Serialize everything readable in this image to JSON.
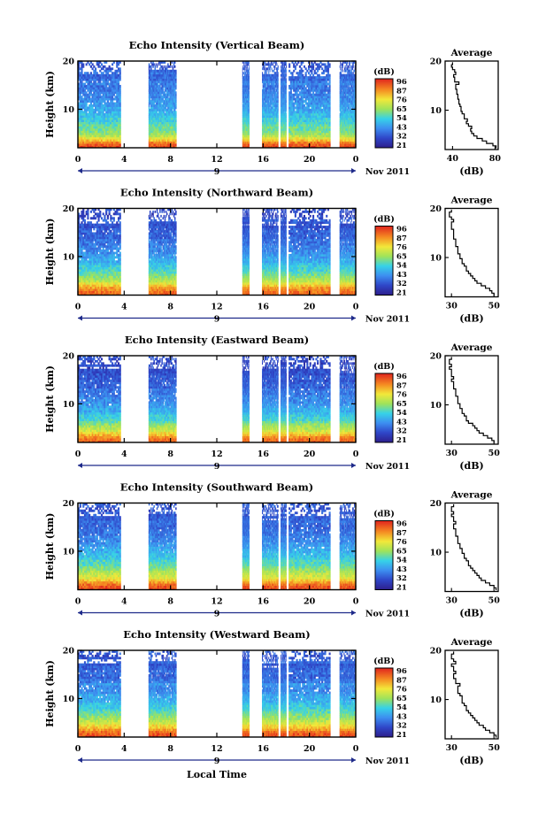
{
  "figure": {
    "xlabel": "Local Time",
    "date_label": "Nov 2011",
    "day_label": "9",
    "ylabel": "Height (km)",
    "colorbar_label": "(dB)",
    "colorbar_ticks": [
      "96",
      "87",
      "76",
      "65",
      "54",
      "43",
      "32",
      "21"
    ],
    "colorbar_ticks_east": [
      "96",
      "87",
      "76",
      "65",
      "54",
      "43",
      "32",
      "21"
    ]
  },
  "chart_data": [
    {
      "type": "heatmap",
      "title": "Echo Intensity (Vertical Beam)",
      "xlabel": "Local Time",
      "ylabel": "Height (km)",
      "x_ticks": [
        "0",
        "4",
        "8",
        "12",
        "16",
        "20",
        "0"
      ],
      "y_ticks": [
        "10",
        "20"
      ],
      "xlim": [
        0,
        24
      ],
      "ylim": [
        2,
        20
      ],
      "colorbar": {
        "label": "(dB)",
        "range": [
          21,
          96
        ]
      },
      "data_segments": [
        [
          0,
          3.7
        ],
        [
          6.1,
          8.5
        ],
        [
          14.2,
          14.8
        ],
        [
          15.9,
          17.3
        ],
        [
          17.5,
          18.0
        ],
        [
          18.2,
          21.8
        ],
        [
          22.6,
          24
        ]
      ],
      "profile": {
        "title": "Average",
        "xlabel": "(dB)",
        "x_ticks": [
          "40",
          "80"
        ],
        "y_ticks": [
          "10",
          "20"
        ],
        "xlim": [
          33,
          83
        ],
        "ylim": [
          2,
          20
        ],
        "heights": [
          2.5,
          3,
          3.5,
          4,
          4.5,
          5,
          5.5,
          6,
          6.5,
          7,
          7.5,
          8,
          8.5,
          9,
          9.5,
          10,
          10.5,
          11,
          11.5,
          12,
          12.5,
          13,
          13.5,
          14,
          14.5,
          15,
          15.5,
          16,
          16.5,
          17,
          17.5,
          18,
          18.5,
          19,
          19.5
        ],
        "values": [
          81,
          78,
          72,
          68,
          63,
          60,
          58,
          57,
          58,
          55,
          53,
          54,
          51,
          51,
          49,
          48,
          48,
          47,
          46,
          46,
          45,
          45,
          44,
          44,
          43,
          43,
          46,
          42,
          42,
          41,
          43,
          42,
          40,
          39,
          40
        ]
      }
    },
    {
      "type": "heatmap",
      "title": "Echo Intensity (Northward Beam)",
      "xlabel": "Local Time",
      "ylabel": "Height (km)",
      "x_ticks": [
        "0",
        "4",
        "8",
        "12",
        "16",
        "20",
        "0"
      ],
      "y_ticks": [
        "10",
        "20"
      ],
      "xlim": [
        0,
        24
      ],
      "ylim": [
        2,
        20
      ],
      "colorbar": {
        "label": "(dB)",
        "range": [
          21,
          96
        ]
      },
      "data_segments": [
        [
          0,
          3.7
        ],
        [
          6.1,
          8.5
        ],
        [
          14.2,
          14.8
        ],
        [
          15.9,
          17.3
        ],
        [
          17.5,
          18.0
        ],
        [
          18.2,
          21.8
        ],
        [
          22.6,
          24
        ]
      ],
      "profile": {
        "title": "Average",
        "xlabel": "(dB)",
        "x_ticks": [
          "30",
          "50"
        ],
        "y_ticks": [
          "10",
          "20"
        ],
        "xlim": [
          27,
          52
        ],
        "ylim": [
          2,
          20
        ],
        "heights": [
          2.5,
          3,
          3.5,
          4,
          4.5,
          5,
          5.5,
          6,
          6.5,
          7,
          7.5,
          8,
          8.5,
          9,
          9.5,
          10,
          10.5,
          11,
          11.5,
          12,
          12.5,
          13,
          13.5,
          14,
          14.5,
          15,
          15.5,
          16,
          16.5,
          17,
          17.5,
          18,
          18.5,
          19,
          19.5
        ],
        "values": [
          50,
          49,
          48,
          46,
          44,
          42,
          41,
          40,
          39,
          38,
          37,
          37,
          36,
          35,
          35,
          34,
          34,
          33,
          33,
          33,
          32,
          32,
          32,
          31,
          31,
          31,
          31,
          30,
          30,
          30,
          31,
          30,
          29,
          29,
          30
        ]
      }
    },
    {
      "type": "heatmap",
      "title": "Echo Intensity (Eastward Beam)",
      "xlabel": "Local Time",
      "ylabel": "Height (km)",
      "x_ticks": [
        "0",
        "4",
        "8",
        "12",
        "16",
        "20",
        "0"
      ],
      "y_ticks": [
        "10",
        "20"
      ],
      "xlim": [
        0,
        24
      ],
      "ylim": [
        2,
        20
      ],
      "colorbar": {
        "label": "(dB)",
        "range": [
          21,
          96
        ]
      },
      "data_segments": [
        [
          0,
          3.7
        ],
        [
          6.1,
          8.5
        ],
        [
          14.2,
          14.8
        ],
        [
          15.9,
          17.3
        ],
        [
          17.5,
          18.0
        ],
        [
          18.2,
          21.8
        ],
        [
          22.6,
          24
        ]
      ],
      "profile": {
        "title": "Average",
        "xlabel": "(dB)",
        "x_ticks": [
          "30",
          "50"
        ],
        "y_ticks": [
          "10",
          "20"
        ],
        "xlim": [
          27,
          52
        ],
        "ylim": [
          2,
          20
        ],
        "heights": [
          2.5,
          3,
          3.5,
          4,
          4.5,
          5,
          5.5,
          6,
          6.5,
          7,
          7.5,
          8,
          8.5,
          9,
          9.5,
          10,
          10.5,
          11,
          11.5,
          12,
          12.5,
          13,
          13.5,
          14,
          14.5,
          15,
          15.5,
          16,
          16.5,
          17,
          17.5,
          18,
          18.5,
          19,
          19.5
        ],
        "values": [
          50,
          49,
          47,
          45,
          43,
          42,
          41,
          40,
          38,
          37,
          37,
          36,
          35,
          35,
          34,
          34,
          33,
          33,
          33,
          32,
          32,
          32,
          31,
          31,
          31,
          30,
          31,
          30,
          30,
          30,
          29,
          30,
          29,
          29,
          30
        ]
      }
    },
    {
      "type": "heatmap",
      "title": "Echo Intensity (Southward Beam)",
      "xlabel": "Local Time",
      "ylabel": "Height (km)",
      "x_ticks": [
        "0",
        "4",
        "8",
        "12",
        "16",
        "20",
        "0"
      ],
      "y_ticks": [
        "10",
        "20"
      ],
      "xlim": [
        0,
        24
      ],
      "ylim": [
        2,
        20
      ],
      "colorbar": {
        "label": "(dB)",
        "range": [
          21,
          96
        ]
      },
      "data_segments": [
        [
          0,
          3.7
        ],
        [
          6.1,
          8.5
        ],
        [
          14.2,
          14.8
        ],
        [
          15.9,
          17.3
        ],
        [
          17.5,
          18.0
        ],
        [
          18.2,
          21.8
        ],
        [
          22.6,
          24
        ]
      ],
      "profile": {
        "title": "Average",
        "xlabel": "(dB)",
        "x_ticks": [
          "30",
          "50"
        ],
        "y_ticks": [
          "10",
          "20"
        ],
        "xlim": [
          27,
          52
        ],
        "ylim": [
          2,
          20
        ],
        "heights": [
          2.5,
          3,
          3.5,
          4,
          4.5,
          5,
          5.5,
          6,
          6.5,
          7,
          7.5,
          8,
          8.5,
          9,
          9.5,
          10,
          10.5,
          11,
          11.5,
          12,
          12.5,
          13,
          13.5,
          14,
          14.5,
          15,
          15.5,
          16,
          16.5,
          17,
          17.5,
          18,
          18.5,
          19,
          19.5
        ],
        "values": [
          51,
          50,
          48,
          46,
          44,
          43,
          42,
          41,
          40,
          39,
          38,
          38,
          37,
          36,
          36,
          35,
          35,
          34,
          34,
          33,
          33,
          33,
          32,
          32,
          32,
          31,
          31,
          32,
          31,
          31,
          30,
          31,
          30,
          30,
          31
        ]
      }
    },
    {
      "type": "heatmap",
      "title": "Echo Intensity (Westward Beam)",
      "xlabel": "Local Time",
      "ylabel": "Height (km)",
      "x_ticks": [
        "0",
        "4",
        "8",
        "12",
        "16",
        "20",
        "0"
      ],
      "y_ticks": [
        "10",
        "20"
      ],
      "xlim": [
        0,
        24
      ],
      "ylim": [
        2,
        20
      ],
      "colorbar": {
        "label": "(dB)",
        "range": [
          21,
          96
        ]
      },
      "data_segments": [
        [
          0,
          3.7
        ],
        [
          6.1,
          8.5
        ],
        [
          14.2,
          14.8
        ],
        [
          15.9,
          17.3
        ],
        [
          17.5,
          18.0
        ],
        [
          18.2,
          21.8
        ],
        [
          22.6,
          24
        ]
      ],
      "profile": {
        "title": "Average",
        "xlabel": "(dB)",
        "x_ticks": [
          "30",
          "50"
        ],
        "y_ticks": [
          "10",
          "20"
        ],
        "xlim": [
          27,
          52
        ],
        "ylim": [
          2,
          20
        ],
        "heights": [
          2.5,
          3,
          3.5,
          4,
          4.5,
          5,
          5.5,
          6,
          6.5,
          7,
          7.5,
          8,
          8.5,
          9,
          9.5,
          10,
          10.5,
          11,
          11.5,
          12,
          12.5,
          13,
          13.5,
          14,
          14.5,
          15,
          15.5,
          16,
          16.5,
          17,
          17.5,
          18,
          18.5,
          19,
          19.5
        ],
        "values": [
          51,
          50,
          48,
          46,
          45,
          43,
          42,
          41,
          40,
          39,
          38,
          37,
          37,
          36,
          35,
          35,
          35,
          34,
          33,
          33,
          33,
          34,
          32,
          32,
          31,
          31,
          32,
          31,
          31,
          30,
          32,
          31,
          30,
          30,
          31
        ]
      }
    }
  ]
}
